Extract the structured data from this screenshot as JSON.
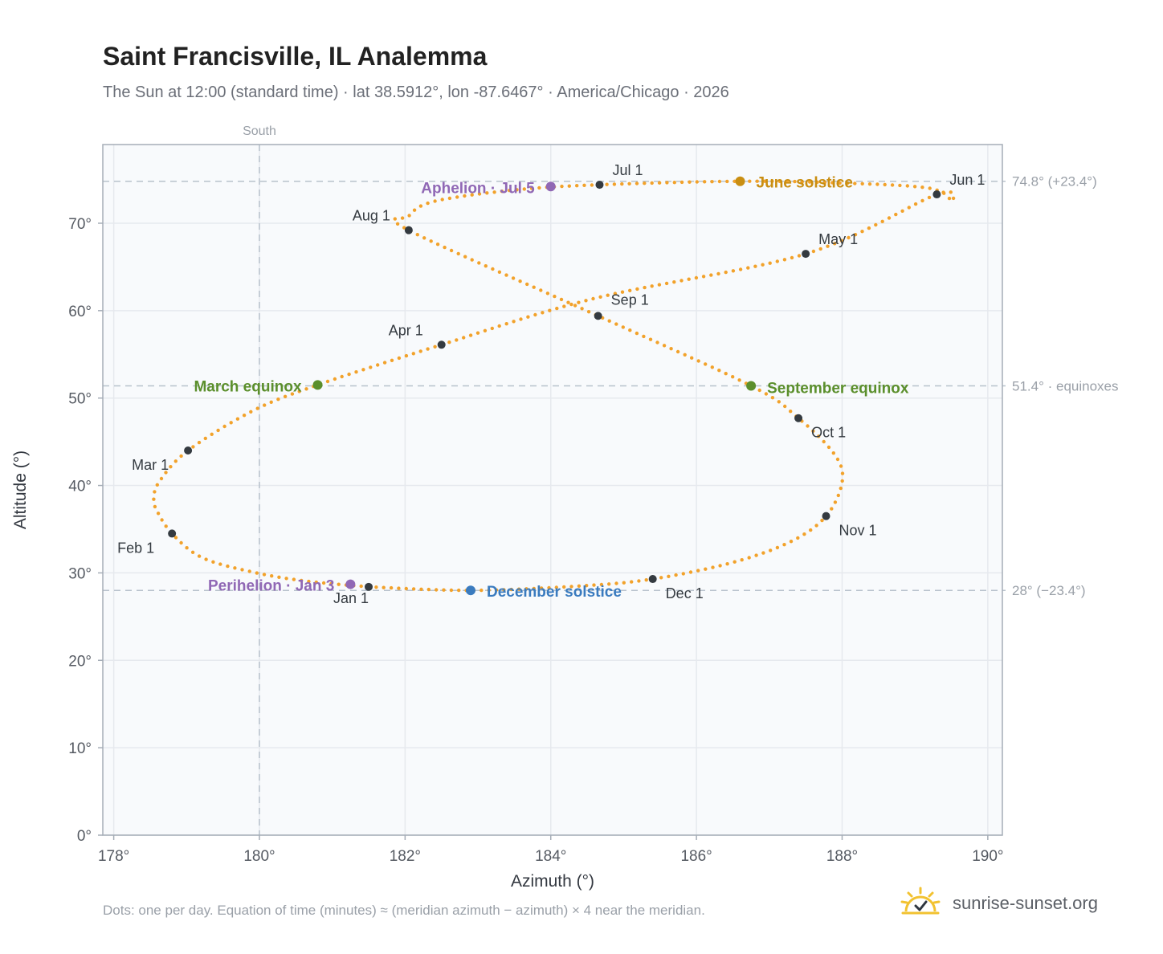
{
  "page": {
    "title": "Saint Francisville, IL Analemma",
    "subtitle": "The Sun at 12:00 (standard time) · lat 38.5912°, lon -87.6467° · America/Chicago · 2026",
    "footnote": "Dots: one per day. Equation of time (minutes) ≈ (meridian azimuth − azimuth) × 4 near the meridian.",
    "brand": "sunrise-sunset.org"
  },
  "chart_data": {
    "type": "scatter",
    "xlabel": "Azimuth (°)",
    "ylabel": "Altitude (°)",
    "xlim": [
      177.85,
      190.2
    ],
    "ylim": [
      0,
      79
    ],
    "x_ticks": [
      178,
      180,
      182,
      184,
      186,
      188,
      190
    ],
    "y_ticks": [
      0,
      10,
      20,
      30,
      40,
      50,
      60,
      70
    ],
    "tick_suffix": "°",
    "grid": true,
    "colors": {
      "path": "#f2a22b",
      "month_marker": "#343a40",
      "solstice_june": "#c98e12",
      "solstice_december": "#3a7bbf",
      "equinox": "#5b8f2c",
      "apsis": "#9068b5",
      "reference_line": "#b8c2cc",
      "plot_bg": "#f8fafc",
      "frame": "#a5adb7"
    },
    "reference_lines": [
      {
        "axis": "x",
        "value": 180,
        "label": "South"
      },
      {
        "axis": "y",
        "value": 74.8,
        "label": "74.8° (+23.4°)"
      },
      {
        "axis": "y",
        "value": 51.4,
        "label": "51.4° · equinoxes"
      },
      {
        "axis": "y",
        "value": 28.0,
        "label": "28° (−23.4°)"
      }
    ],
    "path_points": [
      [
        181.5,
        28.4
      ],
      [
        180.6,
        29.1
      ],
      [
        179.85,
        30.2
      ],
      [
        179.2,
        31.8
      ],
      [
        178.8,
        34.5
      ],
      [
        178.6,
        37.0
      ],
      [
        178.55,
        38.5
      ],
      [
        178.63,
        40.5
      ],
      [
        179.02,
        44.0
      ],
      [
        179.9,
        48.5
      ],
      [
        180.8,
        51.5
      ],
      [
        182.5,
        56.1
      ],
      [
        184.6,
        61.4
      ],
      [
        187.5,
        66.5
      ],
      [
        189.3,
        73.3
      ],
      [
        189.5,
        72.5
      ],
      [
        189.2,
        74.0
      ],
      [
        188.0,
        74.6
      ],
      [
        186.6,
        74.8
      ],
      [
        184.67,
        74.4
      ],
      [
        183.5,
        73.8
      ],
      [
        182.4,
        72.5
      ],
      [
        182.05,
        70.8
      ],
      [
        182.05,
        69.2
      ],
      [
        184.65,
        59.4
      ],
      [
        186.75,
        51.4
      ],
      [
        187.4,
        47.7
      ],
      [
        187.9,
        43.5
      ],
      [
        188.0,
        40.4
      ],
      [
        187.78,
        36.5
      ],
      [
        187.3,
        33.6
      ],
      [
        186.5,
        31.2
      ],
      [
        185.4,
        29.3
      ],
      [
        184.4,
        28.5
      ],
      [
        182.9,
        28.0
      ],
      [
        181.5,
        28.4
      ]
    ],
    "month_markers": [
      {
        "label": "Jan 1",
        "x": 181.5,
        "y": 28.4
      },
      {
        "label": "Feb 1",
        "x": 178.8,
        "y": 34.5
      },
      {
        "label": "Mar 1",
        "x": 179.02,
        "y": 44.0
      },
      {
        "label": "Apr 1",
        "x": 182.5,
        "y": 56.1
      },
      {
        "label": "May 1",
        "x": 187.5,
        "y": 66.5
      },
      {
        "label": "Jun 1",
        "x": 189.3,
        "y": 73.3
      },
      {
        "label": "Jul 1",
        "x": 184.67,
        "y": 74.4
      },
      {
        "label": "Aug 1",
        "x": 182.05,
        "y": 69.2
      },
      {
        "label": "Sep 1",
        "x": 184.65,
        "y": 59.4
      },
      {
        "label": "Oct 1",
        "x": 187.4,
        "y": 47.7
      },
      {
        "label": "Nov 1",
        "x": 187.78,
        "y": 36.5
      },
      {
        "label": "Dec 1",
        "x": 185.4,
        "y": 29.3
      }
    ],
    "events": [
      {
        "label": "June solstice",
        "x": 186.6,
        "y": 74.8,
        "kind": "solstice_june"
      },
      {
        "label": "December solstice",
        "x": 182.9,
        "y": 28.0,
        "kind": "solstice_december"
      },
      {
        "label": "March equinox",
        "x": 180.8,
        "y": 51.5,
        "kind": "equinox"
      },
      {
        "label": "September equinox",
        "x": 186.75,
        "y": 51.4,
        "kind": "equinox"
      },
      {
        "label": "Aphelion · Jul 5",
        "x": 184.0,
        "y": 74.2,
        "kind": "apsis"
      },
      {
        "label": "Perihelion · Jan 3",
        "x": 181.25,
        "y": 28.7,
        "kind": "apsis"
      }
    ]
  }
}
